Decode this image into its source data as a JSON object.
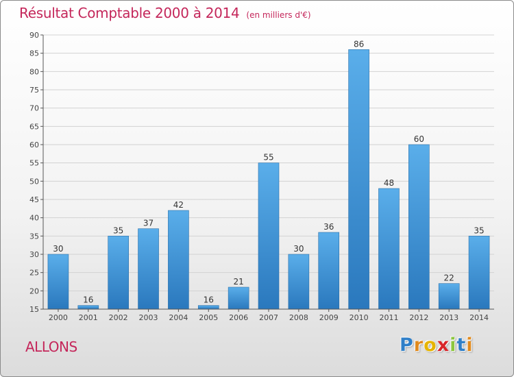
{
  "chart_data": {
    "type": "bar",
    "title": "Résultat Comptable 2000 à 2014",
    "subtitle": "(en milliers d'€)",
    "categories": [
      "2000",
      "2001",
      "2002",
      "2003",
      "2004",
      "2005",
      "2006",
      "2007",
      "2008",
      "2009",
      "2010",
      "2011",
      "2012",
      "2013",
      "2014"
    ],
    "values": [
      30,
      16,
      35,
      37,
      42,
      16,
      21,
      55,
      30,
      36,
      86,
      48,
      60,
      22,
      35
    ],
    "ylim": [
      15,
      90
    ],
    "yticks": [
      15,
      20,
      25,
      30,
      35,
      40,
      45,
      50,
      55,
      60,
      65,
      70,
      75,
      80,
      85,
      90
    ],
    "grid": true,
    "bar_color": "#3f93d6"
  },
  "location": "ALLONS",
  "logo": {
    "letters": [
      "P",
      "r",
      "o",
      "x",
      "i",
      "t",
      "i"
    ],
    "colors": [
      "#2f7fc8",
      "#e08a1e",
      "#e6b400",
      "#d8262a",
      "#8cc63f",
      "#2f7fc8",
      "#e08a1e"
    ]
  }
}
